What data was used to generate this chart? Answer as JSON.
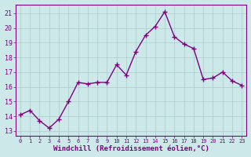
{
  "x": [
    0,
    1,
    2,
    3,
    4,
    5,
    6,
    7,
    8,
    9,
    10,
    11,
    12,
    13,
    14,
    15,
    16,
    17,
    18,
    19,
    20,
    21,
    22,
    23
  ],
  "y": [
    14.1,
    14.4,
    13.7,
    13.2,
    13.8,
    15.0,
    16.3,
    16.2,
    16.3,
    16.3,
    17.5,
    16.8,
    18.4,
    19.5,
    20.1,
    21.1,
    19.4,
    18.9,
    18.6,
    16.5,
    16.6,
    17.0,
    16.4,
    16.1
  ],
  "line_color": "#800080",
  "marker": "+",
  "marker_size": 4,
  "marker_ew": 1.0,
  "xlabel": "Windchill (Refroidissement éolien,°C)",
  "xlabel_fontsize": 6.5,
  "ytick_labels": [
    "13",
    "14",
    "15",
    "16",
    "17",
    "18",
    "19",
    "20",
    "21"
  ],
  "ytick_values": [
    13,
    14,
    15,
    16,
    17,
    18,
    19,
    20,
    21
  ],
  "xtick_labels": [
    "0",
    "1",
    "2",
    "3",
    "4",
    "5",
    "6",
    "7",
    "8",
    "9",
    "10",
    "11",
    "12",
    "13",
    "14",
    "15",
    "16",
    "17",
    "18",
    "19",
    "20",
    "21",
    "22",
    "23"
  ],
  "ylim": [
    12.7,
    21.6
  ],
  "xlim": [
    -0.5,
    23.5
  ],
  "bg_color": "#cce8e8",
  "grid_color": "#aacccc",
  "spine_color": "#800080",
  "tick_color": "#800080",
  "linewidth": 1.0,
  "xtick_fontsize": 5.0,
  "ytick_fontsize": 6.0
}
